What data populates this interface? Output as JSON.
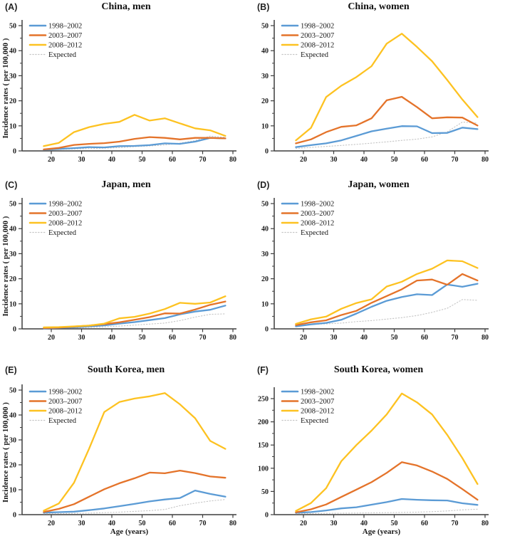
{
  "figure": {
    "background": "#ffffff",
    "x_axis_label": "Age (years)",
    "y_axis_label": "Incidence rates ( per 100,000 )",
    "x_ticks": [
      20,
      30,
      40,
      50,
      60,
      70,
      80
    ],
    "legend": [
      {
        "label": "1998–2002",
        "color": "#5B9BD5",
        "style": "solid"
      },
      {
        "label": "2003–2007",
        "color": "#E4732A",
        "style": "solid"
      },
      {
        "label": "2008–2012",
        "color": "#FDC221",
        "style": "solid"
      },
      {
        "label": "Expected",
        "color": "#C4C4C4",
        "style": "dotted"
      }
    ],
    "legend_position": "top-left",
    "grid": false
  },
  "chart_data": [
    {
      "panel_label": "(A)",
      "title": "China, men",
      "type": "line",
      "x": [
        17.5,
        22.5,
        27.5,
        32.5,
        37.5,
        42.5,
        47.5,
        52.5,
        57.5,
        62.5,
        67.5,
        72.5,
        77.5
      ],
      "ylim": [
        0,
        50
      ],
      "y_ticks": [
        0,
        10,
        20,
        30,
        40,
        50
      ],
      "show_y_axis_title": true,
      "show_x_axis_title": false,
      "series": [
        {
          "name": "1998–2002",
          "values": [
            0.5,
            0.8,
            1.1,
            1.5,
            1.4,
            1.9,
            2.0,
            2.3,
            3.0,
            2.8,
            3.7,
            5.2,
            5.0
          ]
        },
        {
          "name": "2003–2007",
          "values": [
            0.6,
            1.2,
            2.4,
            2.8,
            3.1,
            3.7,
            4.8,
            5.5,
            5.2,
            4.6,
            5.2,
            5.2,
            5.0
          ]
        },
        {
          "name": "2008–2012",
          "values": [
            1.9,
            3.2,
            7.5,
            9.5,
            10.8,
            11.6,
            14.4,
            12.1,
            13.0,
            11.0,
            9.0,
            8.2,
            6.0
          ]
        },
        {
          "name": "Expected",
          "values": [
            0.4,
            0.6,
            0.8,
            0.9,
            1.1,
            1.3,
            1.7,
            2.0,
            2.4,
            3.1,
            4.1,
            5.9,
            5.4
          ]
        }
      ]
    },
    {
      "panel_label": "(B)",
      "title": "China, women",
      "type": "line",
      "x": [
        17.5,
        22.5,
        27.5,
        32.5,
        37.5,
        42.5,
        47.5,
        52.5,
        57.5,
        62.5,
        67.5,
        72.5,
        77.5
      ],
      "ylim": [
        0,
        50
      ],
      "y_ticks": [
        0,
        10,
        20,
        30,
        40,
        50
      ],
      "show_y_axis_title": false,
      "show_x_axis_title": false,
      "series": [
        {
          "name": "1998–2002",
          "values": [
            1.5,
            2.3,
            3.0,
            4.2,
            6.0,
            7.8,
            8.9,
            9.9,
            9.8,
            7.1,
            7.2,
            9.3,
            8.7
          ]
        },
        {
          "name": "2003–2007",
          "values": [
            3.0,
            4.6,
            7.5,
            9.6,
            10.2,
            13.0,
            20.2,
            21.6,
            17.5,
            13.0,
            13.4,
            13.3,
            10.1
          ]
        },
        {
          "name": "2008–2012",
          "values": [
            4.2,
            9.2,
            21.5,
            26.0,
            29.5,
            33.8,
            42.8,
            46.8,
            41.5,
            35.8,
            28.3,
            20.5,
            13.5
          ]
        },
        {
          "name": "Expected",
          "values": [
            1.0,
            1.4,
            1.8,
            2.2,
            2.6,
            3.1,
            3.6,
            4.2,
            4.7,
            5.6,
            7.6,
            11.5,
            11.1
          ]
        }
      ]
    },
    {
      "panel_label": "(C)",
      "title": "Japan, men",
      "type": "line",
      "x": [
        17.5,
        22.5,
        27.5,
        32.5,
        37.5,
        42.5,
        47.5,
        52.5,
        57.5,
        62.5,
        67.5,
        72.5,
        77.5
      ],
      "ylim": [
        0,
        50
      ],
      "y_ticks": [
        0,
        10,
        20,
        30,
        40,
        50
      ],
      "show_y_axis_title": true,
      "show_x_axis_title": false,
      "series": [
        {
          "name": "1998–2002",
          "values": [
            0.2,
            0.4,
            0.6,
            1.0,
            1.4,
            2.1,
            2.7,
            3.5,
            4.3,
            5.8,
            6.9,
            7.6,
            9.3
          ]
        },
        {
          "name": "2003–2007",
          "values": [
            0.3,
            0.5,
            0.9,
            1.3,
            1.9,
            2.6,
            3.6,
            4.7,
            6.2,
            6.1,
            7.7,
            9.6,
            10.9
          ]
        },
        {
          "name": "2008–2012",
          "values": [
            0.6,
            0.7,
            1.0,
            1.3,
            2.1,
            4.2,
            4.8,
            6.1,
            7.9,
            10.4,
            10.0,
            10.5,
            13.0
          ]
        },
        {
          "name": "Expected",
          "values": [
            0.2,
            0.3,
            0.4,
            0.6,
            0.8,
            1.1,
            1.5,
            1.9,
            2.3,
            3.3,
            4.7,
            5.8,
            6.0
          ]
        }
      ]
    },
    {
      "panel_label": "(D)",
      "title": "Japan, women",
      "type": "line",
      "x": [
        17.5,
        22.5,
        27.5,
        32.5,
        37.5,
        42.5,
        47.5,
        52.5,
        57.5,
        62.5,
        67.5,
        72.5,
        77.5
      ],
      "ylim": [
        0,
        50
      ],
      "y_ticks": [
        0,
        10,
        20,
        30,
        40,
        50
      ],
      "show_y_axis_title": false,
      "show_x_axis_title": false,
      "series": [
        {
          "name": "1998–2002",
          "values": [
            1.0,
            1.8,
            2.4,
            3.6,
            6.1,
            8.8,
            11.2,
            12.7,
            13.8,
            13.5,
            17.7,
            16.8,
            18.0
          ]
        },
        {
          "name": "2003–2007",
          "values": [
            1.5,
            2.6,
            3.4,
            5.5,
            7.2,
            10.4,
            13.1,
            15.8,
            19.3,
            19.7,
            17.6,
            21.9,
            19.3
          ]
        },
        {
          "name": "2008–2012",
          "values": [
            2.0,
            3.8,
            4.9,
            8.0,
            10.3,
            11.8,
            16.9,
            18.8,
            21.9,
            24.0,
            27.3,
            27.0,
            24.3
          ]
        },
        {
          "name": "Expected",
          "values": [
            1.5,
            1.8,
            2.0,
            2.3,
            2.9,
            3.3,
            3.9,
            4.5,
            5.3,
            6.6,
            8.2,
            11.7,
            11.4
          ]
        }
      ]
    },
    {
      "panel_label": "(E)",
      "title": "South Korea, men",
      "type": "line",
      "x": [
        17.5,
        22.5,
        27.5,
        32.5,
        37.5,
        42.5,
        47.5,
        52.5,
        57.5,
        62.5,
        67.5,
        72.5,
        77.5
      ],
      "ylim": [
        0,
        50
      ],
      "y_ticks": [
        0,
        10,
        20,
        30,
        40,
        50
      ],
      "show_y_axis_title": true,
      "show_x_axis_title": true,
      "series": [
        {
          "name": "1998–2002",
          "values": [
            0.8,
            1.0,
            1.2,
            1.8,
            2.5,
            3.4,
            4.3,
            5.3,
            6.1,
            6.7,
            9.7,
            8.3,
            7.2
          ]
        },
        {
          "name": "2003–2007",
          "values": [
            1.1,
            2.3,
            4.2,
            7.2,
            10.2,
            12.6,
            14.6,
            16.9,
            16.6,
            17.7,
            16.7,
            15.3,
            14.8
          ]
        },
        {
          "name": "2008–2012",
          "values": [
            1.6,
            4.5,
            12.8,
            26.5,
            41.2,
            45.2,
            46.6,
            47.5,
            48.8,
            44.3,
            38.7,
            29.6,
            26.4
          ]
        },
        {
          "name": "Expected",
          "values": [
            0.3,
            0.4,
            0.5,
            0.6,
            0.8,
            1.0,
            1.3,
            1.6,
            2.1,
            3.6,
            4.6,
            5.5,
            6.1
          ]
        }
      ]
    },
    {
      "panel_label": "(F)",
      "title": "South Korea, women",
      "type": "line",
      "x": [
        17.5,
        22.5,
        27.5,
        32.5,
        37.5,
        42.5,
        47.5,
        52.5,
        57.5,
        62.5,
        67.5,
        72.5,
        77.5
      ],
      "ylim": [
        0,
        275
      ],
      "y_ticks": [
        0,
        50,
        100,
        150,
        200,
        250
      ],
      "show_y_axis_title": false,
      "show_x_axis_title": true,
      "series": [
        {
          "name": "1998–2002",
          "values": [
            4,
            5.5,
            9,
            13.5,
            16,
            21.5,
            27,
            33.8,
            32,
            31,
            30.5,
            24.5,
            21
          ]
        },
        {
          "name": "2003–2007",
          "values": [
            5,
            11.5,
            22,
            38,
            54,
            70,
            90,
            113,
            106,
            93,
            77,
            55,
            32
          ]
        },
        {
          "name": "2008–2012",
          "values": [
            8,
            25,
            57,
            115,
            150,
            181,
            216,
            261,
            242,
            216,
            172,
            122,
            66
          ]
        },
        {
          "name": "Expected",
          "values": [
            2,
            2.3,
            2.7,
            3.0,
            3.4,
            3.8,
            4.3,
            4.8,
            5.4,
            6.4,
            8.0,
            10.2,
            11.8
          ]
        }
      ]
    }
  ]
}
